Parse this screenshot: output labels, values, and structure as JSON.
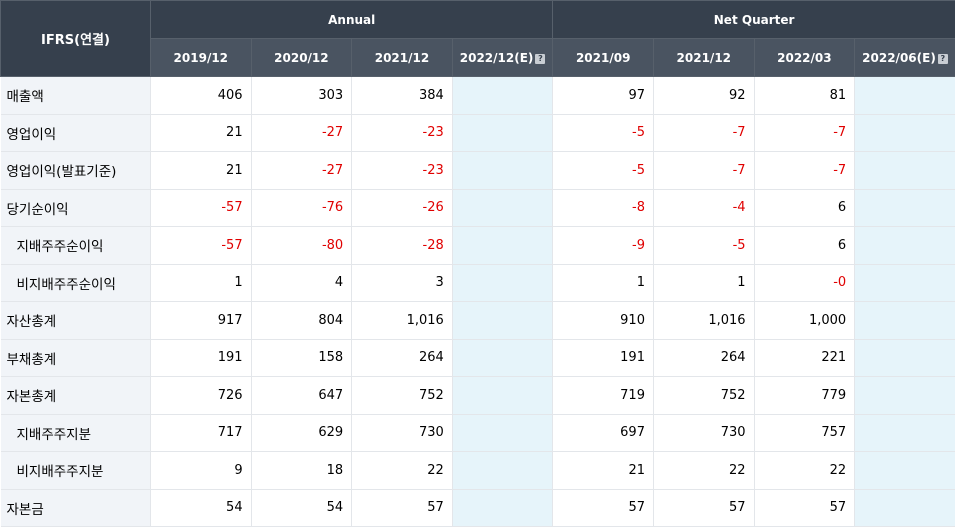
{
  "header": {
    "corner_label": "IFRS(연결)",
    "group_annual": "Annual",
    "group_quarter": "Net Quarter",
    "annual_cols": [
      "2019/12",
      "2020/12",
      "2021/12",
      "2022/12(E)"
    ],
    "quarter_cols": [
      "2021/09",
      "2021/12",
      "2022/03",
      "2022/06(E)"
    ],
    "estimate_help_icon": "?"
  },
  "rows": [
    {
      "label": "매출액",
      "values": [
        "406",
        "303",
        "384",
        "",
        "97",
        "92",
        "81",
        ""
      ]
    },
    {
      "label": "영업이익",
      "values": [
        "21",
        "-27",
        "-23",
        "",
        "-5",
        "-7",
        "-7",
        ""
      ]
    },
    {
      "label": "영업이익(발표기준)",
      "values": [
        "21",
        "-27",
        "-23",
        "",
        "-5",
        "-7",
        "-7",
        ""
      ]
    },
    {
      "label": "당기순이익",
      "values": [
        "-57",
        "-76",
        "-26",
        "",
        "-8",
        "-4",
        "6",
        ""
      ]
    },
    {
      "label": "지배주주순이익",
      "values": [
        "-57",
        "-80",
        "-28",
        "",
        "-9",
        "-5",
        "6",
        ""
      ]
    },
    {
      "label": "비지배주주순이익",
      "values": [
        "1",
        "4",
        "3",
        "",
        "1",
        "1",
        "-0",
        ""
      ]
    },
    {
      "label": "자산총계",
      "values": [
        "917",
        "804",
        "1,016",
        "",
        "910",
        "1,016",
        "1,000",
        ""
      ]
    },
    {
      "label": "부채총계",
      "values": [
        "191",
        "158",
        "264",
        "",
        "191",
        "264",
        "221",
        ""
      ]
    },
    {
      "label": "자본총계",
      "values": [
        "726",
        "647",
        "752",
        "",
        "719",
        "752",
        "779",
        ""
      ]
    },
    {
      "label": "지배주주지분",
      "values": [
        "717",
        "629",
        "730",
        "",
        "697",
        "730",
        "757",
        ""
      ]
    },
    {
      "label": "비지배주주지분",
      "values": [
        "9",
        "18",
        "22",
        "",
        "21",
        "22",
        "22",
        ""
      ]
    },
    {
      "label": "자본금",
      "values": [
        "54",
        "54",
        "57",
        "",
        "57",
        "57",
        "57",
        ""
      ]
    }
  ],
  "colors": {
    "header_bg": "#36404d",
    "label_bg": "#f1f4f8",
    "estimate_bg": "#e6f4fa",
    "negative": "#e00000"
  }
}
